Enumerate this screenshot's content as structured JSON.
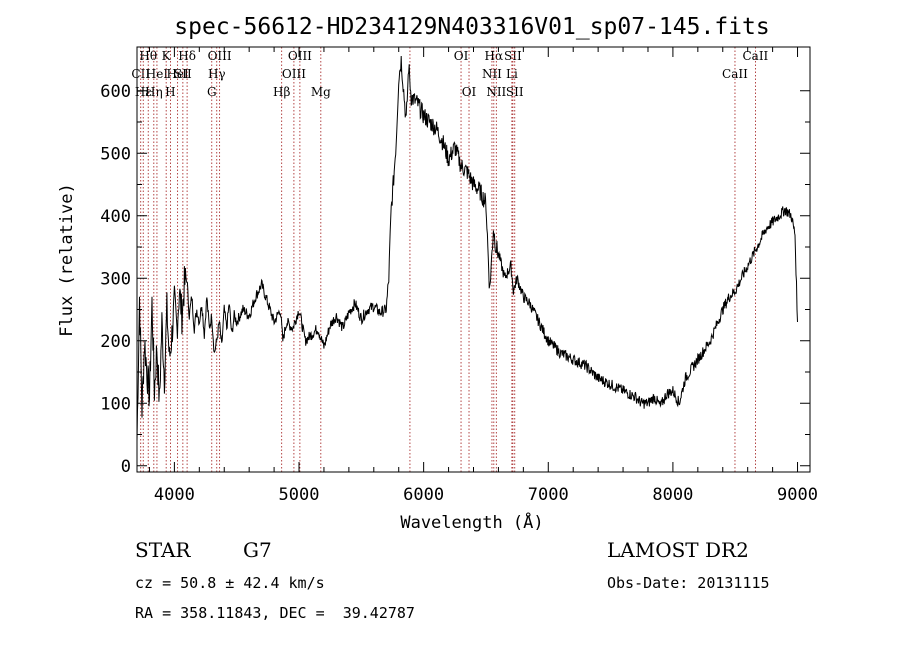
{
  "chart_data": {
    "type": "line",
    "title": "spec-56612-HD234129N403316V01_sp07-145.fits",
    "xlabel": "Wavelength (Å)",
    "ylabel": "Flux (relative)",
    "xlim": [
      3700,
      9100
    ],
    "ylim": [
      -10,
      670
    ],
    "x_ticks": [
      4000,
      5000,
      6000,
      7000,
      8000,
      9000
    ],
    "y_ticks": [
      0,
      100,
      200,
      300,
      400,
      500,
      600
    ],
    "grid": false,
    "series": [
      {
        "x": [
          3700,
          3720,
          3740,
          3760,
          3780,
          3800,
          3820,
          3840,
          3860,
          3880,
          3900,
          3920,
          3940,
          3960,
          3980,
          4000,
          4020,
          4040,
          4060,
          4080,
          4100,
          4120,
          4140,
          4160,
          4180,
          4200,
          4220,
          4240,
          4260,
          4280,
          4300,
          4320,
          4340,
          4360,
          4380,
          4400,
          4420,
          4440,
          4460,
          4480,
          4500,
          4550,
          4600,
          4650,
          4700,
          4750,
          4800,
          4850,
          4870,
          4900,
          4950,
          5000,
          5050,
          5100,
          5150,
          5200,
          5250,
          5300,
          5350,
          5400,
          5450,
          5500,
          5550,
          5600,
          5650,
          5700,
          5720,
          5740,
          5760,
          5780,
          5800,
          5820,
          5840,
          5860,
          5880,
          5900,
          5950,
          6000,
          6050,
          6100,
          6150,
          6200,
          6250,
          6300,
          6350,
          6400,
          6450,
          6500,
          6530,
          6560,
          6580,
          6600,
          6650,
          6700,
          6720,
          6750,
          6800,
          6850,
          6900,
          6950,
          7000,
          7100,
          7200,
          7300,
          7400,
          7500,
          7600,
          7700,
          7750,
          7800,
          7850,
          7900,
          7950,
          8000,
          8050,
          8100,
          8200,
          8300,
          8400,
          8450,
          8500,
          8550,
          8600,
          8650,
          8700,
          8750,
          8800,
          8850,
          8900,
          8950,
          8980,
          9000
        ],
        "values": [
          40,
          270,
          90,
          200,
          150,
          110,
          260,
          120,
          190,
          100,
          230,
          140,
          250,
          170,
          210,
          260,
          220,
          280,
          240,
          290,
          300,
          240,
          270,
          220,
          250,
          230,
          260,
          210,
          270,
          220,
          240,
          180,
          200,
          230,
          190,
          250,
          220,
          260,
          210,
          240,
          230,
          250,
          240,
          270,
          290,
          260,
          230,
          250,
          200,
          230,
          220,
          250,
          200,
          210,
          220,
          190,
          225,
          240,
          220,
          245,
          260,
          235,
          250,
          255,
          245,
          250,
          300,
          410,
          460,
          520,
          620,
          650,
          600,
          550,
          640,
          590,
          580,
          560,
          550,
          540,
          520,
          490,
          510,
          480,
          470,
          450,
          440,
          420,
          280,
          380,
          350,
          340,
          300,
          320,
          280,
          300,
          270,
          260,
          240,
          220,
          200,
          180,
          170,
          160,
          140,
          130,
          120,
          110,
          100,
          100,
          110,
          95,
          115,
          120,
          100,
          140,
          170,
          200,
          250,
          270,
          280,
          300,
          320,
          340,
          360,
          380,
          390,
          400,
          410,
          400,
          370,
          230
        ]
      }
    ],
    "line_markers": [
      {
        "x": 3730,
        "text": "CII",
        "row": 1
      },
      {
        "x": 3750,
        "text": "Hε",
        "row": 2
      },
      {
        "x": 3790,
        "text": "Hθ",
        "row": 0
      },
      {
        "x": 3835,
        "text": "Hη",
        "row": 2
      },
      {
        "x": 3860,
        "text": "HeI",
        "row": 1
      },
      {
        "x": 3934,
        "text": "K",
        "row": 0
      },
      {
        "x": 3968,
        "text": "H",
        "row": 2
      },
      {
        "x": 4026,
        "text": "HeI",
        "row": 1
      },
      {
        "x": 4068,
        "text": "SII",
        "row": 1
      },
      {
        "x": 4102,
        "text": "Hδ",
        "row": 0
      },
      {
        "x": 4300,
        "text": "G",
        "row": 2
      },
      {
        "x": 4340,
        "text": "Hγ",
        "row": 1
      },
      {
        "x": 4363,
        "text": "OIII",
        "row": 0
      },
      {
        "x": 4861,
        "text": "Hβ",
        "row": 2
      },
      {
        "x": 4959,
        "text": "OIII",
        "row": 1
      },
      {
        "x": 5007,
        "text": "OIII",
        "row": 0
      },
      {
        "x": 5175,
        "text": "Mg",
        "row": 2
      },
      {
        "x": 5890,
        "text": "",
        "row": 0
      },
      {
        "x": 6300,
        "text": "OI",
        "row": 0
      },
      {
        "x": 6364,
        "text": "OI",
        "row": 2
      },
      {
        "x": 6548,
        "text": "NII",
        "row": 1
      },
      {
        "x": 6563,
        "text": "Hα",
        "row": 0
      },
      {
        "x": 6583,
        "text": "NII",
        "row": 2
      },
      {
        "x": 6708,
        "text": "Li",
        "row": 1
      },
      {
        "x": 6716,
        "text": "SII",
        "row": 0
      },
      {
        "x": 6731,
        "text": "SII",
        "row": 2
      },
      {
        "x": 8498,
        "text": "CaII",
        "row": 1
      },
      {
        "x": 8662,
        "text": "CaII",
        "row": 0
      }
    ]
  },
  "info": {
    "class": "STAR",
    "subclass": "G7",
    "survey": "LAMOST DR2",
    "cz": "cz = 50.8 ± 42.4 km/s",
    "obs_date": "Obs-Date: 20131115",
    "coords": "RA = 358.11843, DEC =  39.42787"
  }
}
